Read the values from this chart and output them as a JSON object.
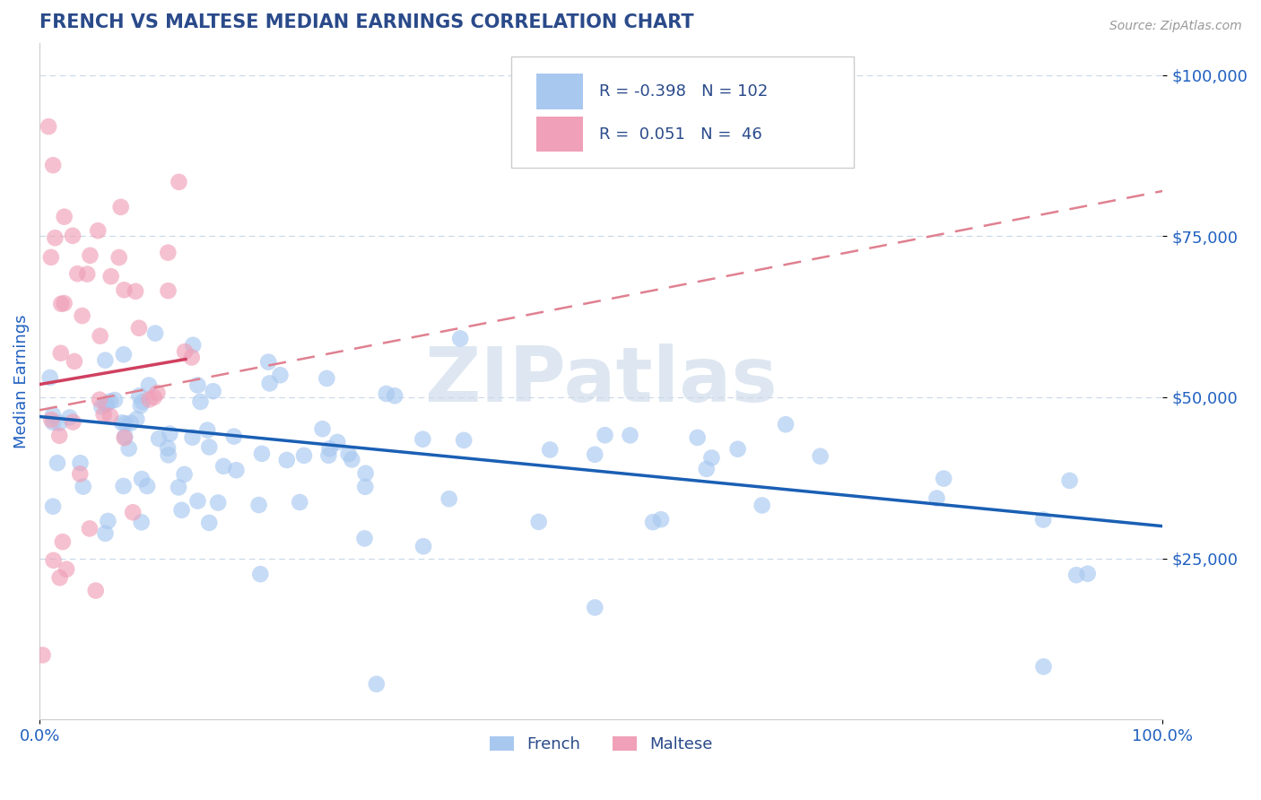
{
  "title": "FRENCH VS MALTESE MEDIAN EARNINGS CORRELATION CHART",
  "source": "Source: ZipAtlas.com",
  "ylabel": "Median Earnings",
  "xlim": [
    0,
    1.0
  ],
  "ylim": [
    0,
    105000
  ],
  "yticks": [
    25000,
    50000,
    75000,
    100000
  ],
  "yticklabels": [
    "$25,000",
    "$50,000",
    "$75,000",
    "$100,000"
  ],
  "french_color": "#a8c8f0",
  "maltese_color": "#f0a0b8",
  "french_line_color": "#1a5fb4",
  "maltese_line_color": "#d04060",
  "maltese_dash_color": "#e08090",
  "legend_R1": "-0.398",
  "legend_N1": "102",
  "legend_R2": "0.051",
  "legend_N2": "46",
  "legend_label1": "French",
  "legend_label2": "Maltese",
  "french_R": -0.398,
  "french_N": 102,
  "maltese_R": 0.051,
  "maltese_N": 46,
  "watermark": "ZIPatlas",
  "background_color": "#ffffff",
  "grid_color": "#c8d8e8",
  "title_color": "#2a4a8a",
  "tick_color": "#2060c0"
}
